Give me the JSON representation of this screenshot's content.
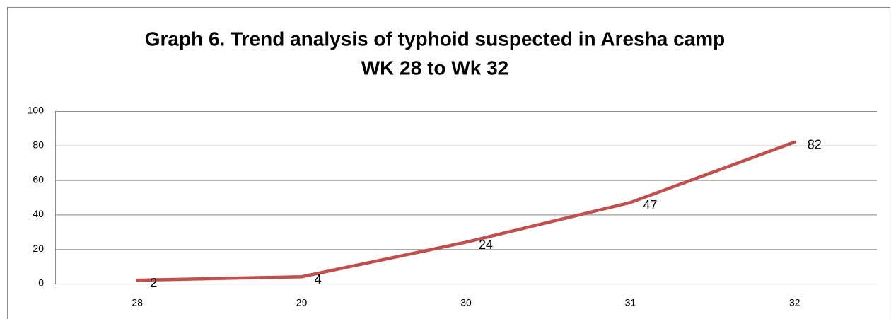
{
  "chart_data": {
    "type": "line",
    "title": "Graph 6. Trend analysis of typhoid suspected in Aresha camp",
    "subtitle": "WK 28 to Wk 32",
    "categories": [
      "28",
      "29",
      "30",
      "31",
      "32"
    ],
    "values": [
      2,
      4,
      24,
      47,
      82
    ],
    "color": "#c0504d",
    "ylim": [
      0,
      100
    ],
    "yticks": [
      0,
      20,
      40,
      60,
      80,
      100
    ],
    "grid": true
  }
}
